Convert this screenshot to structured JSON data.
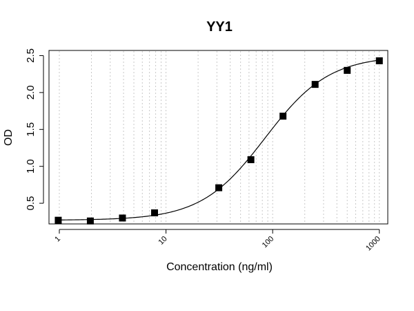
{
  "chart_data": {
    "type": "scatter",
    "title": "YY1",
    "xlabel": "Concentration (ng/ml)",
    "ylabel": "OD",
    "x_scale": "log",
    "xlim": [
      0.8,
      1200
    ],
    "ylim": [
      0.22,
      2.57
    ],
    "xticks": [
      1,
      10,
      100,
      1000
    ],
    "xtick_labels": [
      "1",
      "10",
      "100",
      "1000"
    ],
    "yticks": [
      0.5,
      1.0,
      1.5,
      2.0,
      2.5
    ],
    "ytick_labels": [
      "0.5",
      "1.0",
      "1.5",
      "2.0",
      "2.5"
    ],
    "grid": "vertical dotted lines at log-scale minor ticks",
    "legend": "none",
    "points": {
      "x": [
        0.977,
        1.953,
        3.906,
        7.813,
        31.25,
        62.5,
        125,
        250,
        500,
        1000
      ],
      "y": [
        0.27,
        0.26,
        0.3,
        0.37,
        0.71,
        1.09,
        1.68,
        2.11,
        2.3,
        2.43
      ]
    },
    "fit_curve": {
      "type": "4PL",
      "bottom": 0.27,
      "top": 2.5,
      "ec50": 85,
      "hill": 1.45
    },
    "colors": {
      "points": "#000000",
      "curve": "#000000",
      "grid": "#c8c8c8"
    }
  }
}
